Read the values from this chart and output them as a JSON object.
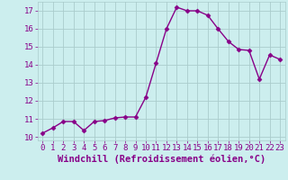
{
  "x": [
    0,
    1,
    2,
    3,
    4,
    5,
    6,
    7,
    8,
    9,
    10,
    11,
    12,
    13,
    14,
    15,
    16,
    17,
    18,
    19,
    20,
    21,
    22,
    23
  ],
  "y": [
    10.2,
    10.5,
    10.85,
    10.85,
    10.35,
    10.85,
    10.9,
    11.05,
    11.1,
    11.1,
    12.2,
    14.1,
    16.0,
    17.2,
    17.0,
    17.0,
    16.75,
    16.0,
    15.3,
    14.85,
    14.8,
    13.2,
    14.55,
    14.3
  ],
  "line_color": "#880088",
  "marker": "D",
  "markersize": 2.5,
  "linewidth": 1.0,
  "xlabel": "Windchill (Refroidissement éolien,°C)",
  "ylabel": "",
  "xlim": [
    -0.5,
    23.5
  ],
  "ylim": [
    9.8,
    17.5
  ],
  "yticks": [
    10,
    11,
    12,
    13,
    14,
    15,
    16,
    17
  ],
  "xticks": [
    0,
    1,
    2,
    3,
    4,
    5,
    6,
    7,
    8,
    9,
    10,
    11,
    12,
    13,
    14,
    15,
    16,
    17,
    18,
    19,
    20,
    21,
    22,
    23
  ],
  "background_color": "#cceeee",
  "grid_color": "#aacccc",
  "tick_fontsize": 6.5,
  "xlabel_fontsize": 7.5
}
